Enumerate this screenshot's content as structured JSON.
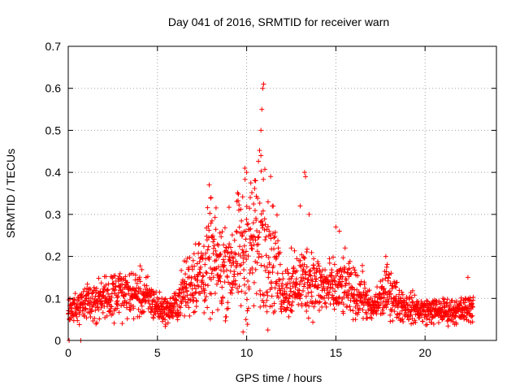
{
  "chart_data": {
    "type": "scatter",
    "title": "Day 041 of 2016, SRMTID for receiver warn",
    "xlabel": "GPS time / hours",
    "ylabel": "SRMTID / TECUs",
    "xlim": [
      0,
      24
    ],
    "ylim": [
      0,
      0.7
    ],
    "xticks": [
      0,
      5,
      10,
      15,
      20
    ],
    "yticks": [
      0,
      0.1,
      0.2,
      0.3,
      0.4,
      0.5,
      0.6,
      0.7
    ],
    "ytick_labels": [
      "0",
      "0.1",
      "0.2",
      "0.3",
      "0.4",
      "0.5",
      "0.6",
      "0.7"
    ],
    "grid": true,
    "marker": "+",
    "series": [
      {
        "name": "SRMTID",
        "color": "#ff0000",
        "profile_hours": [
          0.0,
          0.5,
          1.0,
          2.0,
          3.0,
          4.0,
          4.5,
          5.0,
          5.5,
          6.0,
          6.5,
          7.0,
          7.5,
          8.0,
          8.5,
          9.0,
          9.5,
          10.0,
          10.5,
          11.0,
          11.5,
          12.0,
          12.5,
          13.0,
          13.5,
          14.0,
          15.0,
          15.5,
          16.0,
          16.5,
          17.0,
          17.5,
          18.0,
          18.5,
          19.0,
          20.0,
          21.0,
          22.0,
          22.7
        ],
        "profile_values": [
          0.07,
          0.08,
          0.09,
          0.1,
          0.11,
          0.11,
          0.1,
          0.08,
          0.07,
          0.08,
          0.12,
          0.15,
          0.16,
          0.19,
          0.17,
          0.18,
          0.2,
          0.22,
          0.23,
          0.25,
          0.2,
          0.12,
          0.12,
          0.14,
          0.15,
          0.13,
          0.12,
          0.13,
          0.11,
          0.11,
          0.07,
          0.1,
          0.12,
          0.09,
          0.08,
          0.07,
          0.07,
          0.07,
          0.08
        ],
        "spikes": [
          {
            "hour": 7.9,
            "value": 0.37
          },
          {
            "hour": 8.0,
            "value": 0.34
          },
          {
            "hour": 9.9,
            "value": 0.41
          },
          {
            "hour": 10.0,
            "value": 0.4
          },
          {
            "hour": 10.2,
            "value": 0.34
          },
          {
            "hour": 10.5,
            "value": 0.38
          },
          {
            "hour": 10.8,
            "value": 0.5
          },
          {
            "hour": 10.85,
            "value": 0.55
          },
          {
            "hour": 10.9,
            "value": 0.6
          },
          {
            "hour": 10.95,
            "value": 0.61
          },
          {
            "hour": 10.8,
            "value": 0.44
          },
          {
            "hour": 11.2,
            "value": 0.33
          },
          {
            "hour": 12.5,
            "value": 0.22
          },
          {
            "hour": 13.0,
            "value": 0.32
          },
          {
            "hour": 13.25,
            "value": 0.4
          },
          {
            "hour": 13.3,
            "value": 0.39
          },
          {
            "hour": 13.5,
            "value": 0.3
          },
          {
            "hour": 15.0,
            "value": 0.27
          },
          {
            "hour": 15.2,
            "value": 0.26
          },
          {
            "hour": 17.8,
            "value": 0.2
          },
          {
            "hour": 22.4,
            "value": 0.15
          },
          {
            "hour": 9.8,
            "value": 0.02
          },
          {
            "hour": 0.7,
            "value": 0.0
          },
          {
            "hour": 0.05,
            "value": 0.0
          }
        ],
        "n_points": 1900
      }
    ]
  }
}
